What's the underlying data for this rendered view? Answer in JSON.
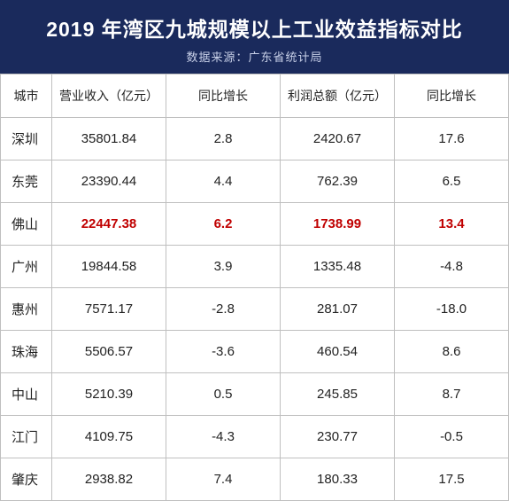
{
  "header": {
    "title": "2019 年湾区九城规模以上工业效益指标对比",
    "subtitle": "数据来源：广东省统计局"
  },
  "table": {
    "columns": [
      "城市",
      "营业收入（亿元）",
      "同比增长",
      "利润总额（亿元）",
      "同比增长"
    ],
    "rows": [
      {
        "city": "深圳",
        "revenue": "35801.84",
        "rev_growth": "2.8",
        "profit": "2420.67",
        "prof_growth": "17.6",
        "highlight": false
      },
      {
        "city": "东莞",
        "revenue": "23390.44",
        "rev_growth": "4.4",
        "profit": "762.39",
        "prof_growth": "6.5",
        "highlight": false
      },
      {
        "city": "佛山",
        "revenue": "22447.38",
        "rev_growth": "6.2",
        "profit": "1738.99",
        "prof_growth": "13.4",
        "highlight": true
      },
      {
        "city": "广州",
        "revenue": "19844.58",
        "rev_growth": "3.9",
        "profit": "1335.48",
        "prof_growth": "-4.8",
        "highlight": false
      },
      {
        "city": "惠州",
        "revenue": "7571.17",
        "rev_growth": "-2.8",
        "profit": "281.07",
        "prof_growth": "-18.0",
        "highlight": false
      },
      {
        "city": "珠海",
        "revenue": "5506.57",
        "rev_growth": "-3.6",
        "profit": "460.54",
        "prof_growth": "8.6",
        "highlight": false
      },
      {
        "city": "中山",
        "revenue": "5210.39",
        "rev_growth": "0.5",
        "profit": "245.85",
        "prof_growth": "8.7",
        "highlight": false
      },
      {
        "city": "江门",
        "revenue": "4109.75",
        "rev_growth": "-4.3",
        "profit": "230.77",
        "prof_growth": "-0.5",
        "highlight": false
      },
      {
        "city": "肇庆",
        "revenue": "2938.82",
        "rev_growth": "7.4",
        "profit": "180.33",
        "prof_growth": "17.5",
        "highlight": false
      }
    ],
    "highlight_color": "#c00000",
    "border_color": "#bfbfbf",
    "header_bg": "#1a2a5c"
  }
}
